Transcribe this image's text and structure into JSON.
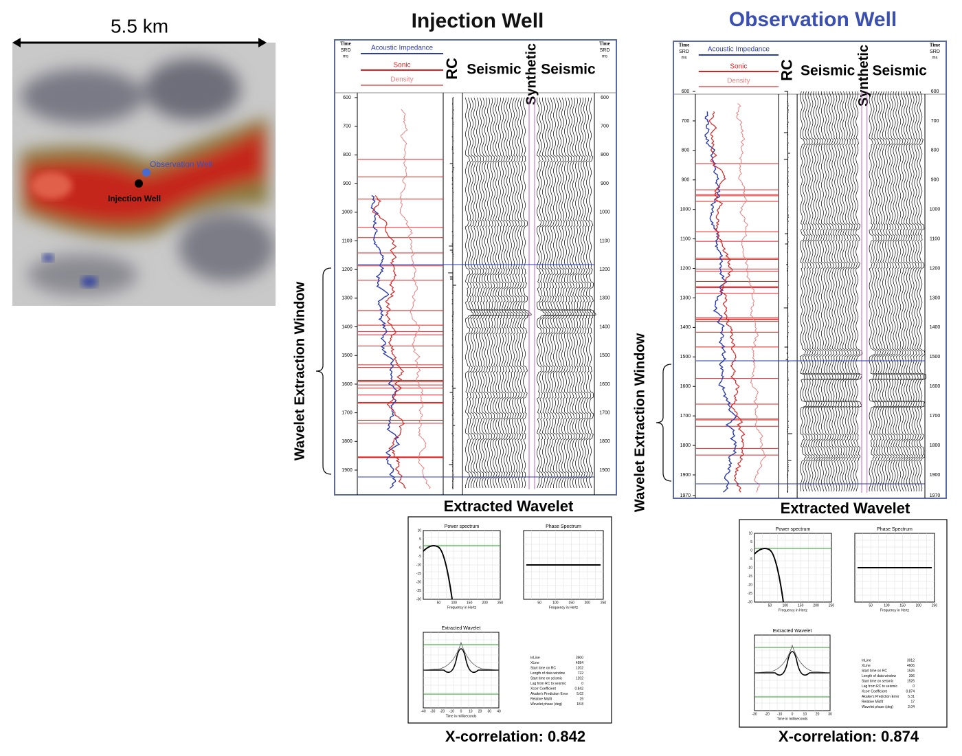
{
  "map": {
    "scale": "5.5 km",
    "observation": "Observation Well",
    "injection": "Injection Well"
  },
  "panels": [
    {
      "title": "Injection Well",
      "time": "Time",
      "srd": "SRD",
      "ms": "ms",
      "ai": "Acoustic Impedance",
      "sonic": "Sonic",
      "density": "Density",
      "rc": "RC",
      "seismic_left": "Seismic",
      "synthetic": "Synthetic",
      "seismic_right": "Seismic",
      "times": [
        600,
        700,
        800,
        900,
        1000,
        1100,
        1200,
        1300,
        1400,
        1500,
        1600,
        1700,
        1800,
        1900
      ],
      "window": "Wavelet Extraction Window",
      "wavelet_title": "Extracted Wavelet",
      "power": "Power spectrum",
      "phase": "Phase Spectrum",
      "wavelet": "Extracted Wavelet",
      "freq_label": "Frequency in Hertz",
      "time_label": "Time in milliseconds",
      "power_ticks": [
        10,
        5,
        0,
        -5,
        -10,
        -15,
        -20,
        -25,
        -30
      ],
      "freq_ticks": [
        50,
        100,
        150,
        200,
        250
      ],
      "time_ticks": [
        -40,
        -30,
        -20,
        -10,
        0,
        10,
        20,
        30,
        40
      ],
      "stats": [
        [
          "InLine",
          "3900"
        ],
        [
          "XLine",
          "4584"
        ],
        [
          "Start time on RC",
          "1202"
        ],
        [
          "Length of data window",
          "722"
        ],
        [
          "Start time on seismic",
          "1202"
        ],
        [
          "Lag from RC to seismic",
          "0"
        ],
        [
          "Xcorr Coefficient",
          "0.842"
        ],
        [
          "Akaike's Prediction Error",
          "5.02"
        ],
        [
          "Relative Misfit",
          "29"
        ],
        [
          "Wavelet phase (deg)",
          "18.8"
        ]
      ],
      "xcorr": "X-correlation: 0.842"
    },
    {
      "title": "Observation Well",
      "time": "Time",
      "srd": "SRD",
      "ms": "ms",
      "ai": "Acoustic Impedance",
      "sonic": "Sonic",
      "density": "Density",
      "rc": "RC",
      "seismic_left": "Seismic",
      "synthetic": "Synthetic",
      "seismic_right": "Seismic",
      "times": [
        600,
        700,
        800,
        900,
        1000,
        1100,
        1200,
        1300,
        1400,
        1500,
        1600,
        1700,
        1800,
        1900,
        1970
      ],
      "window": "Wavelet Extraction Window",
      "wavelet_title": "Extracted Wavelet",
      "power": "Power spectrum",
      "phase": "Phase Spectrum",
      "wavelet": "Extracted Wavelet",
      "freq_label": "Frequency in Hertz",
      "time_label": "Time in milliseconds",
      "power_ticks": [
        10,
        5,
        0,
        -5,
        -10,
        -15,
        -20,
        -25,
        -30
      ],
      "freq_ticks": [
        50,
        100,
        150,
        200,
        250
      ],
      "time_ticks": [
        -30,
        -20,
        -10,
        0,
        10,
        20,
        30
      ],
      "stats": [
        [
          "InLine",
          "3912"
        ],
        [
          "XLine",
          "4606"
        ],
        [
          "Start time on RC",
          "1526"
        ],
        [
          "Length of data window",
          "396"
        ],
        [
          "Start time on seismic",
          "1526"
        ],
        [
          "Lag from RC to seismic",
          "0"
        ],
        [
          "Xcorr Coefficient",
          "0.874"
        ],
        [
          "Akaike's Prediction Error",
          "5.31"
        ],
        [
          "Relative Misfit",
          "17"
        ],
        [
          "Wavelet phase (deg)",
          "2.04"
        ]
      ],
      "xcorr": "X-correlation: 0.874"
    }
  ]
}
